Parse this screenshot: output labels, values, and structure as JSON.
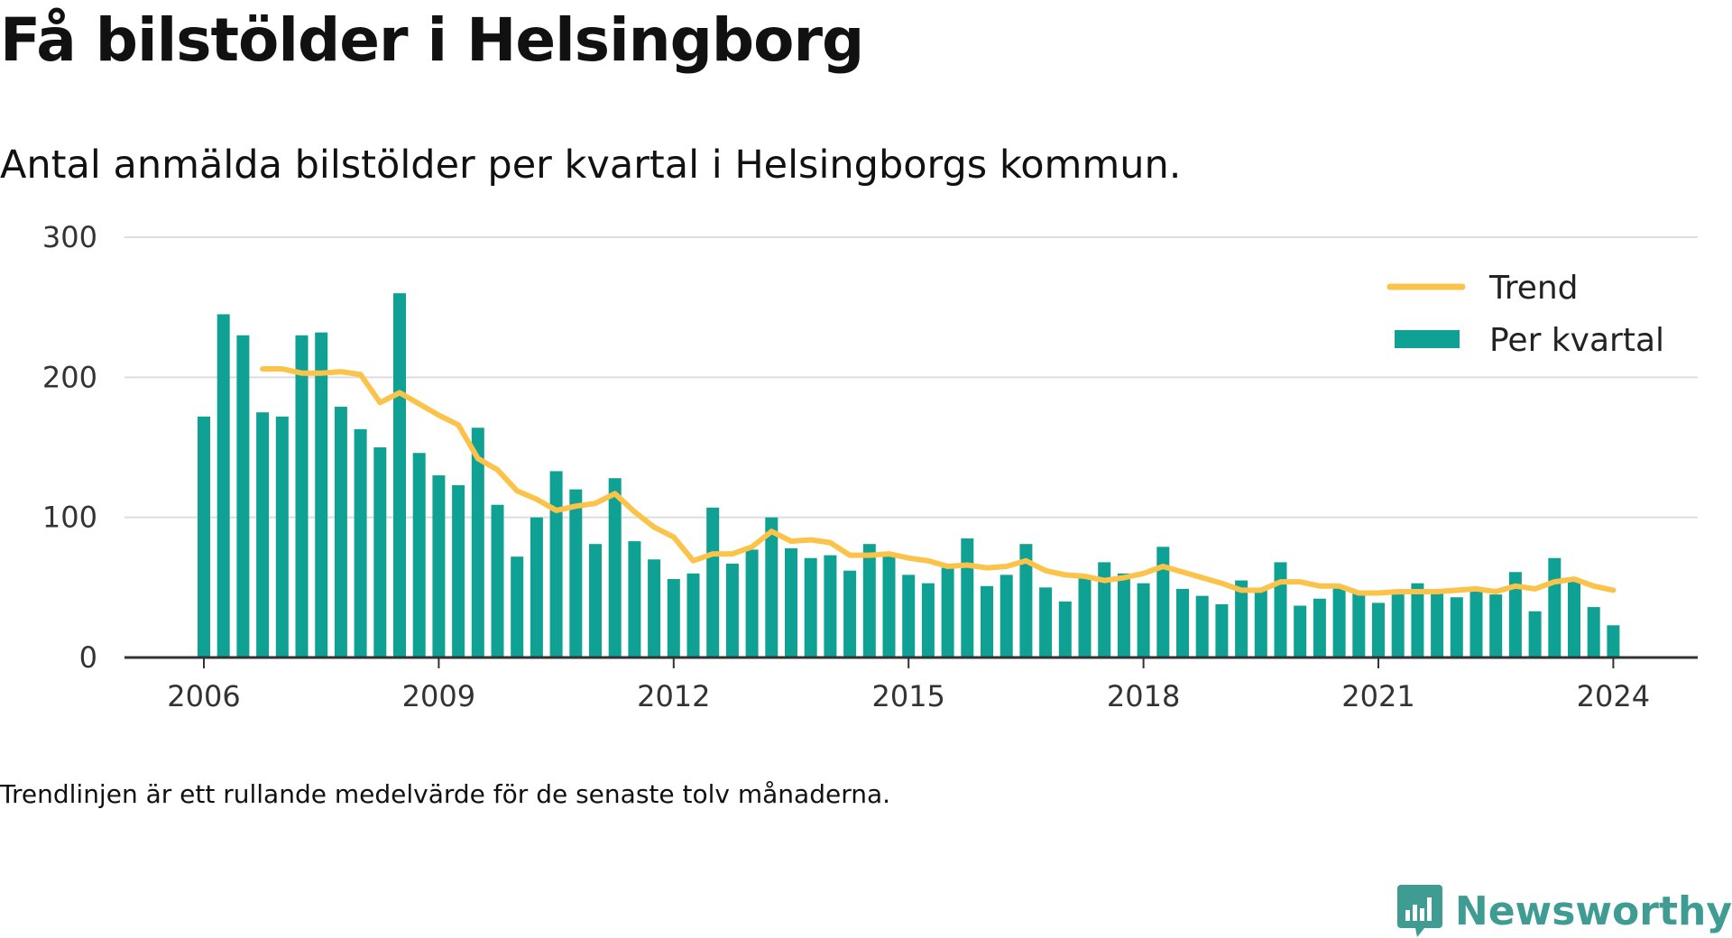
{
  "page": {
    "title": "Få bilstölder i Helsingborg",
    "subtitle": "Antal anmälda bilstölder per kvartal i Helsingborgs kommun.",
    "note": "Trendlinjen är ett rullande medelvärde för de senaste tolv månaderna.",
    "brand": "Newsworthy"
  },
  "colors": {
    "bar": "#0fa294",
    "trend": "#fbc34a",
    "grid": "#dddddd",
    "axis": "#333333",
    "brand": "#3e9c93"
  },
  "chart_data": {
    "type": "bar",
    "x_tick_labels": [
      "2006",
      "2009",
      "2012",
      "2015",
      "2018",
      "2021",
      "2024"
    ],
    "y_tick_labels": [
      "0",
      "100",
      "200",
      "300"
    ],
    "ylim": [
      0,
      300
    ],
    "grid": true,
    "legend_position": "top-right",
    "legend": [
      {
        "label": "Trend",
        "kind": "line"
      },
      {
        "label": "Per kvartal",
        "kind": "bar"
      }
    ],
    "x": [
      "2006-Q1",
      "2006-Q2",
      "2006-Q3",
      "2006-Q4",
      "2007-Q1",
      "2007-Q2",
      "2007-Q3",
      "2007-Q4",
      "2008-Q1",
      "2008-Q2",
      "2008-Q3",
      "2008-Q4",
      "2009-Q1",
      "2009-Q2",
      "2009-Q3",
      "2009-Q4",
      "2010-Q1",
      "2010-Q2",
      "2010-Q3",
      "2010-Q4",
      "2011-Q1",
      "2011-Q2",
      "2011-Q3",
      "2011-Q4",
      "2012-Q1",
      "2012-Q2",
      "2012-Q3",
      "2012-Q4",
      "2013-Q1",
      "2013-Q2",
      "2013-Q3",
      "2013-Q4",
      "2014-Q1",
      "2014-Q2",
      "2014-Q3",
      "2014-Q4",
      "2015-Q1",
      "2015-Q2",
      "2015-Q3",
      "2015-Q4",
      "2016-Q1",
      "2016-Q2",
      "2016-Q3",
      "2016-Q4",
      "2017-Q1",
      "2017-Q2",
      "2017-Q3",
      "2017-Q4",
      "2018-Q1",
      "2018-Q2",
      "2018-Q3",
      "2018-Q4",
      "2019-Q1",
      "2019-Q2",
      "2019-Q3",
      "2019-Q4",
      "2020-Q1",
      "2020-Q2",
      "2020-Q3",
      "2020-Q4",
      "2021-Q1",
      "2021-Q2",
      "2021-Q3",
      "2021-Q4",
      "2022-Q1",
      "2022-Q2",
      "2022-Q3",
      "2022-Q4",
      "2023-Q1",
      "2023-Q2",
      "2023-Q3",
      "2023-Q4",
      "2024-Q1"
    ],
    "series": [
      {
        "name": "Per kvartal",
        "type": "bar",
        "values": [
          172,
          245,
          230,
          175,
          172,
          230,
          232,
          179,
          163,
          150,
          260,
          146,
          130,
          123,
          164,
          109,
          72,
          100,
          133,
          120,
          81,
          128,
          83,
          70,
          56,
          60,
          107,
          67,
          77,
          100,
          78,
          71,
          73,
          62,
          81,
          75,
          59,
          53,
          64,
          85,
          51,
          59,
          81,
          50,
          40,
          58,
          68,
          60,
          53,
          79,
          49,
          44,
          38,
          55,
          48,
          68,
          37,
          42,
          50,
          46,
          39,
          45,
          53,
          47,
          43,
          48,
          45,
          61,
          33,
          71,
          56,
          36,
          23
        ]
      },
      {
        "name": "Trend",
        "type": "line",
        "values": [
          null,
          null,
          null,
          206,
          206,
          203,
          203,
          204,
          202,
          182,
          189,
          181,
          173,
          166,
          142,
          134,
          119,
          113,
          105,
          108,
          110,
          117,
          104,
          93,
          86,
          69,
          74,
          74,
          79,
          90,
          83,
          84,
          82,
          73,
          73,
          74,
          71,
          69,
          65,
          66,
          64,
          65,
          69,
          62,
          59,
          58,
          55,
          57,
          60,
          65,
          61,
          57,
          53,
          48,
          48,
          54,
          54,
          51,
          51,
          46,
          46,
          47,
          47,
          47,
          48,
          49,
          47,
          51,
          49,
          54,
          56,
          51,
          48
        ]
      }
    ]
  }
}
